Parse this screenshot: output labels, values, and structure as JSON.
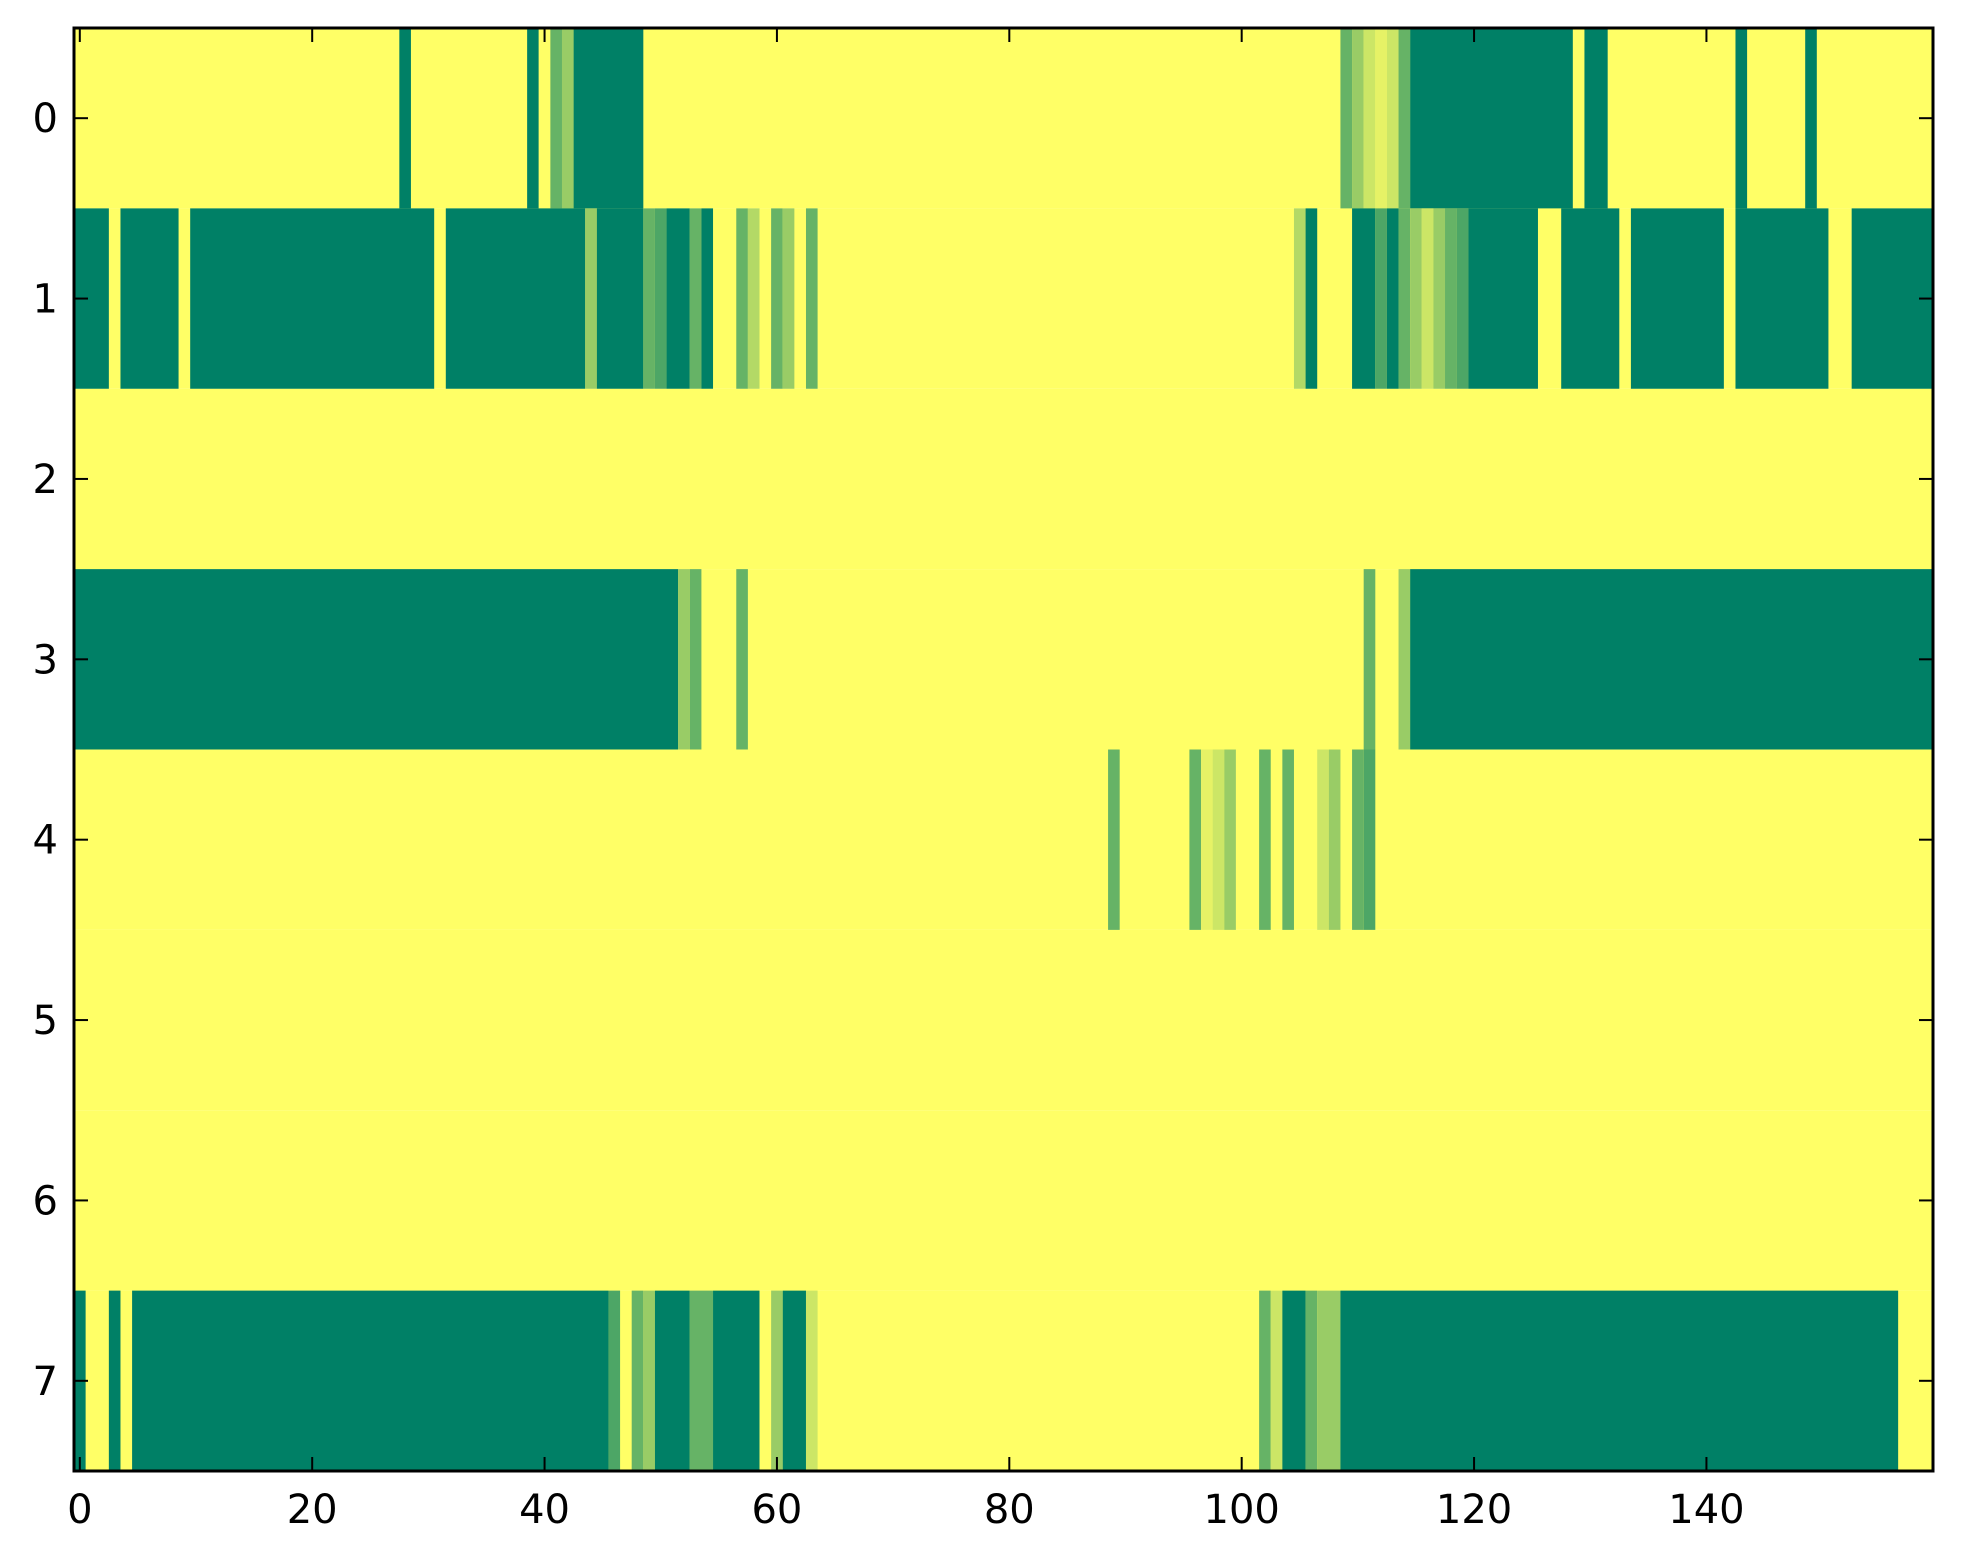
{
  "chart_data": {
    "type": "heatmap",
    "title": "",
    "xlabel": "",
    "ylabel": "",
    "xlim": [
      -0.5,
      159.5
    ],
    "ylim": [
      7.5,
      -0.5
    ],
    "grid": false,
    "legend": "none",
    "colormap": "summer",
    "colors": {
      "low": "#008066",
      "mid_low": "#54aa66",
      "mid": "#80c066",
      "mid_high": "#c0e066",
      "high": "#ffff66",
      "frame": "#000000"
    },
    "x_ticks": [
      0,
      20,
      40,
      60,
      80,
      100,
      120,
      140
    ],
    "x_tick_labels": [
      "0",
      "20",
      "40",
      "60",
      "80",
      "100",
      "120",
      "140"
    ],
    "y_ticks": [
      0,
      1,
      2,
      3,
      4,
      5,
      6,
      7
    ],
    "y_tick_labels": [
      "0",
      "1",
      "2",
      "3",
      "4",
      "5",
      "6",
      "7"
    ],
    "n_cols": 160,
    "background_value": 1.0,
    "rows": [
      {
        "row": 0,
        "segments": [
          [
            28,
            28,
            0
          ],
          [
            39,
            39,
            0
          ],
          [
            40,
            40,
            1
          ],
          [
            41,
            41,
            0.4
          ],
          [
            42,
            42,
            0.6
          ],
          [
            43,
            48,
            0
          ],
          [
            109,
            109,
            0.4
          ],
          [
            110,
            110,
            0.6
          ],
          [
            111,
            111,
            0.8
          ],
          [
            112,
            112,
            0.9
          ],
          [
            113,
            113,
            0.8
          ],
          [
            114,
            114,
            0.4
          ],
          [
            115,
            128,
            0
          ],
          [
            130,
            131,
            0
          ],
          [
            143,
            143,
            0
          ],
          [
            149,
            149,
            0
          ]
        ]
      },
      {
        "row": 1,
        "segments": [
          [
            -0.5,
            2,
            0
          ],
          [
            4,
            8,
            0
          ],
          [
            10,
            30,
            0
          ],
          [
            32,
            43,
            0
          ],
          [
            44,
            44,
            0.6
          ],
          [
            45,
            48,
            0
          ],
          [
            49,
            49,
            0.4
          ],
          [
            50,
            50,
            0.3
          ],
          [
            51,
            52,
            0
          ],
          [
            53,
            53,
            0.4
          ],
          [
            54,
            54,
            0
          ],
          [
            57,
            57,
            0.4
          ],
          [
            58,
            58,
            0.7
          ],
          [
            60,
            60,
            0.4
          ],
          [
            61,
            61,
            0.6
          ],
          [
            63,
            63,
            0.4
          ],
          [
            105,
            105,
            0.7
          ],
          [
            106,
            106,
            0
          ],
          [
            110,
            111,
            0
          ],
          [
            112,
            112,
            0.3
          ],
          [
            113,
            113,
            0
          ],
          [
            114,
            114,
            0.4
          ],
          [
            115,
            115,
            0.6
          ],
          [
            116,
            116,
            0.8
          ],
          [
            117,
            117,
            0.6
          ],
          [
            118,
            118,
            0.4
          ],
          [
            119,
            119,
            0.3
          ],
          [
            120,
            125,
            0
          ],
          [
            128,
            132,
            0
          ],
          [
            134,
            141,
            0
          ],
          [
            143,
            150,
            0
          ],
          [
            153,
            159,
            0
          ]
        ]
      },
      {
        "row": 2,
        "segments": []
      },
      {
        "row": 3,
        "segments": [
          [
            -0.5,
            51,
            0
          ],
          [
            52,
            52,
            0.6
          ],
          [
            53,
            53,
            0.4
          ],
          [
            57,
            57,
            0.4
          ],
          [
            111,
            111,
            0.4
          ],
          [
            114,
            114,
            0.6
          ],
          [
            115,
            159,
            0
          ]
        ]
      },
      {
        "row": 4,
        "segments": [
          [
            89,
            89,
            0.4
          ],
          [
            96,
            96,
            0.4
          ],
          [
            97,
            97,
            0.9
          ],
          [
            98,
            98,
            0.8
          ],
          [
            99,
            99,
            0.6
          ],
          [
            102,
            102,
            0.4
          ],
          [
            104,
            104,
            0.4
          ],
          [
            107,
            107,
            0.8
          ],
          [
            108,
            108,
            0.6
          ],
          [
            110,
            110,
            0.4
          ],
          [
            111,
            111,
            0.3
          ]
        ]
      },
      {
        "row": 5,
        "segments": []
      },
      {
        "row": 6,
        "segments": []
      },
      {
        "row": 7,
        "segments": [
          [
            -0.5,
            0,
            0
          ],
          [
            3,
            3,
            0
          ],
          [
            5,
            45,
            0
          ],
          [
            46,
            46,
            0.3
          ],
          [
            48,
            48,
            0.4
          ],
          [
            49,
            49,
            0.6
          ],
          [
            50,
            52,
            0
          ],
          [
            53,
            54,
            0.4
          ],
          [
            55,
            58,
            0
          ],
          [
            60,
            60,
            0.6
          ],
          [
            61,
            62,
            0
          ],
          [
            63,
            63,
            0.8
          ],
          [
            102,
            102,
            0.4
          ],
          [
            103,
            103,
            0.8
          ],
          [
            104,
            105,
            0
          ],
          [
            106,
            106,
            0.4
          ],
          [
            107,
            108,
            0.6
          ],
          [
            109,
            156,
            0
          ]
        ]
      }
    ]
  }
}
